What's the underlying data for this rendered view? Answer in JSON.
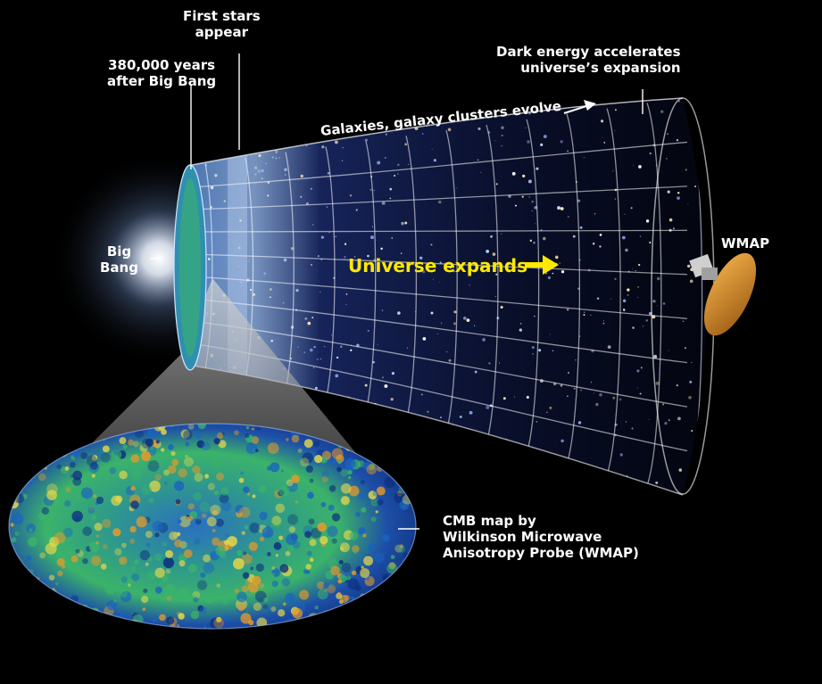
{
  "labels": {
    "first_stars_1": "First stars",
    "first_stars_2": "appear",
    "years_1": "380,000 years",
    "years_2": "after Big Bang",
    "dark_1": "Dark energy accelerates",
    "dark_2": "universe’s expansion",
    "galaxies": "Galaxies, galaxy clusters evolve",
    "big_bang_1": "Big",
    "big_bang_2": "Bang",
    "universe_expands": "Universe expands",
    "wmap": "WMAP",
    "cmb_1": "CMB map by",
    "cmb_2": "Wilkinson  Microwave",
    "cmb_3": "Anisotropy Probe (WMAP)"
  },
  "colors": {
    "background": "#000000",
    "text": "#ffffff",
    "highlight": "#ffe800",
    "cmb_blue": "#1d4fa8",
    "cmb_green": "#3bb36a",
    "cmb_yellow": "#e8d84a"
  },
  "icons": {
    "arrow": "right-arrow-icon",
    "probe": "wmap-satellite-icon"
  }
}
